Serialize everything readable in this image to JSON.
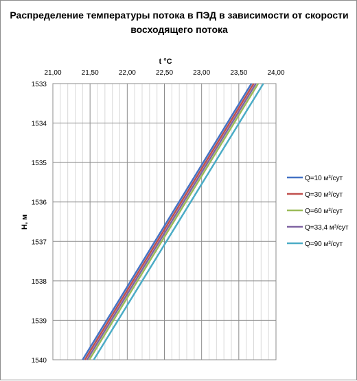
{
  "chart_data": {
    "type": "line",
    "title_line1": "Распределение температуры потока в ПЭД в зависимости от скорости",
    "title_line2": "восходящего потока",
    "xlabel": "t °C",
    "ylabel": "H, м",
    "xlim": [
      21.0,
      24.0
    ],
    "ylim": [
      1533,
      1540
    ],
    "y_inverted": true,
    "x_axis_position": "top",
    "x_ticks": [
      "21,00",
      "21,50",
      "22,00",
      "22,50",
      "23,00",
      "23,50",
      "24,00"
    ],
    "y_ticks": [
      "1533",
      "1534",
      "1535",
      "1536",
      "1537",
      "1538",
      "1539",
      "1540"
    ],
    "grid": true,
    "legend_position": "right",
    "series": [
      {
        "name": "Q=10 м³/сут",
        "color": "#4472c4",
        "points": [
          [
            21.4,
            1540
          ],
          [
            23.67,
            1533
          ]
        ]
      },
      {
        "name": "Q=30 м³/сут",
        "color": "#c0504d",
        "points": [
          [
            21.43,
            1540
          ],
          [
            23.7,
            1533
          ]
        ]
      },
      {
        "name": "Q=60 м³/сут",
        "color": "#9bbb59",
        "points": [
          [
            21.49,
            1540
          ],
          [
            23.76,
            1533
          ]
        ]
      },
      {
        "name": "Q=33,4 м³/сут",
        "color": "#8064a2",
        "points": [
          [
            21.46,
            1540
          ],
          [
            23.73,
            1533
          ]
        ]
      },
      {
        "name": "Q=90 м³/сут",
        "color": "#4bacc6",
        "points": [
          [
            21.55,
            1540
          ],
          [
            23.83,
            1533
          ]
        ]
      }
    ]
  }
}
